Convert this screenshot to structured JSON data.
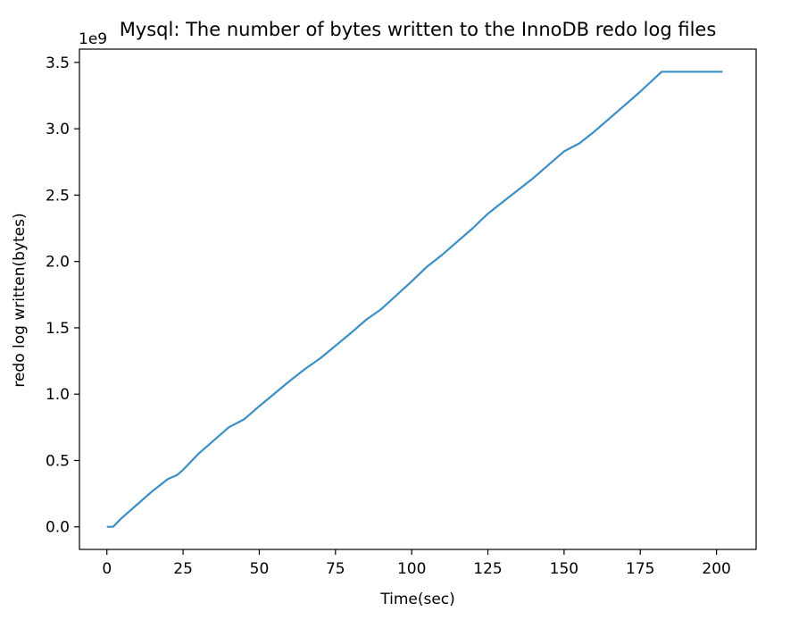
{
  "chart_data": {
    "type": "line",
    "title": "Mysql: The number of bytes written to the InnoDB redo log files",
    "xlabel": "Time(sec)",
    "ylabel": "redo log written(bytes)",
    "y_offset_label": "1e9",
    "xlim": [
      -9,
      213
    ],
    "ylim": [
      -0.17,
      3.6
    ],
    "xticks": [
      0,
      25,
      50,
      75,
      100,
      125,
      150,
      175,
      200
    ],
    "xtick_labels": [
      "0",
      "25",
      "50",
      "75",
      "100",
      "125",
      "150",
      "175",
      "200"
    ],
    "yticks": [
      0.0,
      0.5,
      1.0,
      1.5,
      2.0,
      2.5,
      3.0,
      3.5
    ],
    "ytick_labels": [
      "0.0",
      "0.5",
      "1.0",
      "1.5",
      "2.0",
      "2.5",
      "3.0",
      "3.5"
    ],
    "grid": false,
    "legend": "none",
    "series": [
      {
        "color": "#3b8fc4",
        "x": [
          0,
          2,
          5,
          10,
          15,
          20,
          23,
          25,
          30,
          40,
          45,
          50,
          60,
          65,
          70,
          80,
          85,
          90,
          100,
          105,
          110,
          120,
          125,
          130,
          140,
          145,
          150,
          155,
          160,
          170,
          175,
          182,
          185,
          190,
          195,
          202
        ],
        "y": [
          0.0,
          0.0,
          0.07,
          0.17,
          0.27,
          0.36,
          0.39,
          0.43,
          0.55,
          0.75,
          0.81,
          0.91,
          1.1,
          1.19,
          1.27,
          1.46,
          1.56,
          1.64,
          1.85,
          1.96,
          2.05,
          2.25,
          2.36,
          2.45,
          2.63,
          2.73,
          2.83,
          2.89,
          2.98,
          3.18,
          3.28,
          3.43,
          3.43,
          3.43,
          3.43,
          3.43
        ]
      }
    ]
  }
}
